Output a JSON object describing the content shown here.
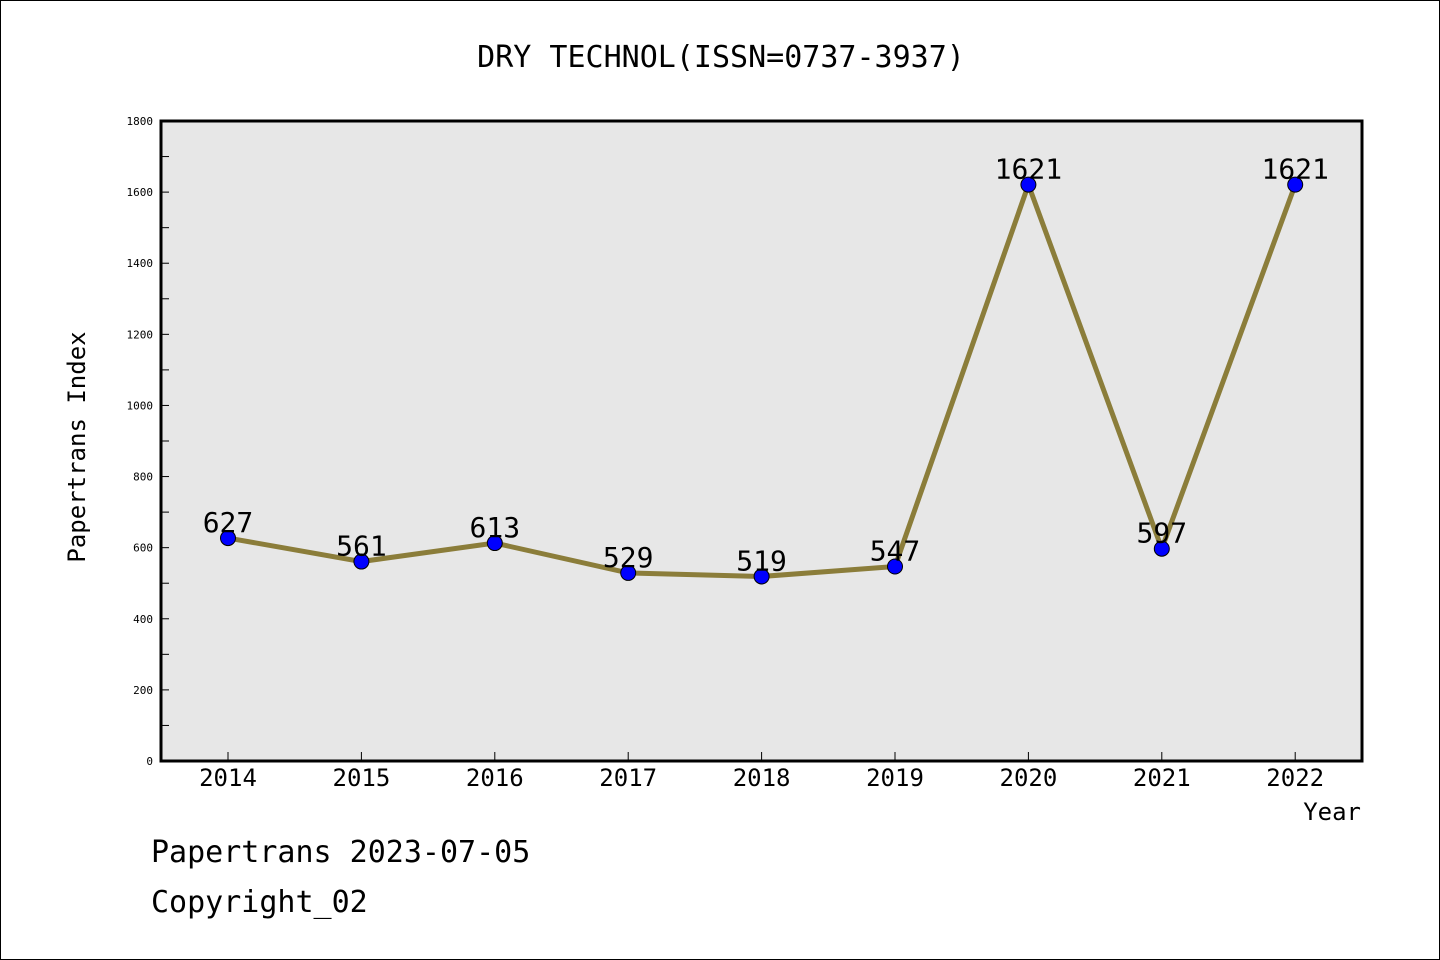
{
  "chart_data": {
    "type": "line",
    "title": "DRY TECHNOL(ISSN=0737-3937)",
    "xlabel": "Year",
    "ylabel": "Papertrans Index",
    "categories": [
      "2014",
      "2015",
      "2016",
      "2017",
      "2018",
      "2019",
      "2020",
      "2021",
      "2022"
    ],
    "series": [
      {
        "values": [
          627,
          561,
          613,
          529,
          519,
          547,
          1621,
          597,
          1621
        ],
        "data_labels": [
          "627",
          "561",
          "613",
          "529",
          "519",
          "547",
          "1621",
          "597",
          "1621"
        ]
      }
    ],
    "ylim": [
      0,
      1800
    ],
    "yticks": [
      "0",
      "200",
      "400",
      "600",
      "800",
      "1000",
      "1200",
      "1400",
      "1600",
      "1800"
    ],
    "grid": false,
    "legend": "none",
    "colors": {
      "line": "#8b7d3a",
      "marker": "#0000ff",
      "plot_background": "#e7e7e7"
    }
  },
  "footer": {
    "source": "Papertrans 2023-07-05",
    "copyright": "Copyright_02"
  }
}
